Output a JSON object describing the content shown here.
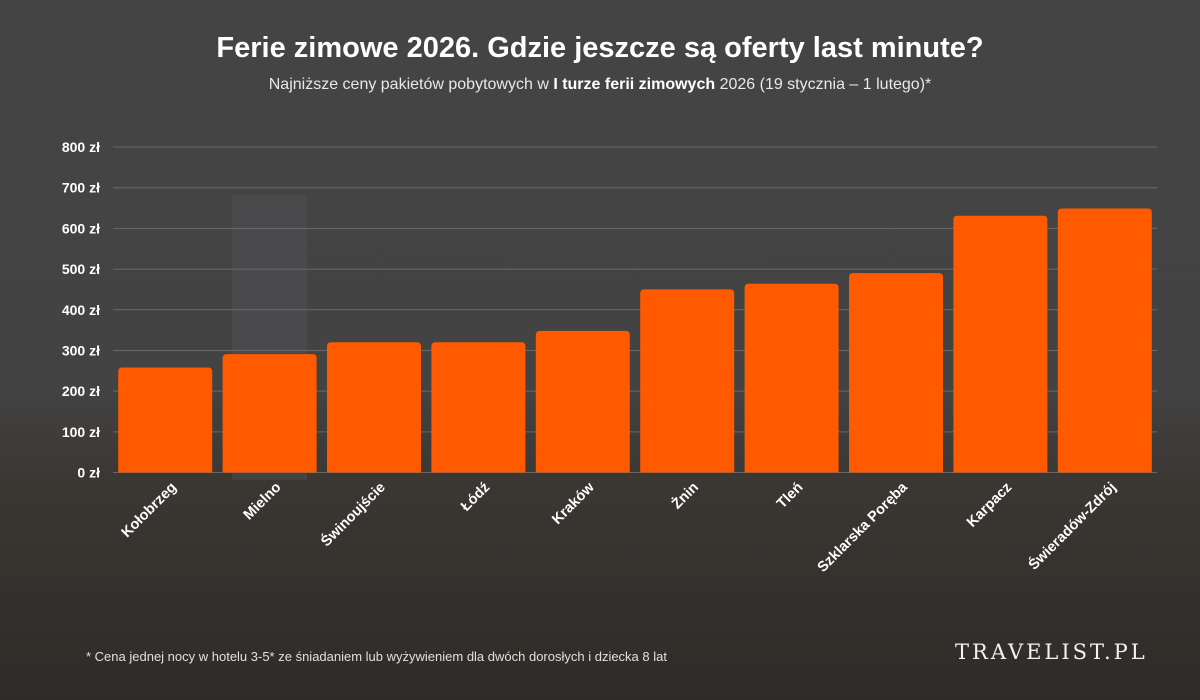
{
  "title": "Ferie zimowe 2026. Gdzie jeszcze są oferty last minute?",
  "subtitle": {
    "pre": "Najniższe ceny pakietów pobytowych w ",
    "bold": "I turze ferii zimowych",
    "post": " 2026 (19 stycznia – 1 lutego)*"
  },
  "footnote": "* Cena jednej nocy w hotelu 3-5* ze śniadaniem lub wyżywieniem dla dwóch dorosłych i dziecka 8 lat",
  "logo": "TRAVELIST.PL",
  "colors": {
    "bar": "#ff5a00",
    "background": "#444444",
    "grid": "#7a7a7a"
  },
  "chart_data": {
    "type": "bar",
    "title": "Ferie zimowe 2026. Gdzie jeszcze są oferty last minute?",
    "categories": [
      "Kołobrzeg",
      "Mielno",
      "Świnoujście",
      "Łódź",
      "Kraków",
      "Żnin",
      "Tleń",
      "Szklarska Poręba",
      "Karpacz",
      "Świeradów-Zdrój"
    ],
    "values": [
      258,
      291,
      320,
      320,
      348,
      450,
      464,
      490,
      631,
      649
    ],
    "ylim": [
      0,
      800
    ],
    "yticks": [
      "0 zł",
      "100 zł",
      "200 zł",
      "300 zł",
      "400 zł",
      "500 zł",
      "600 zł",
      "700 zł",
      "800 zł"
    ],
    "ytick_values": [
      0,
      100,
      200,
      300,
      400,
      500,
      600,
      700,
      800
    ],
    "grid": true,
    "xlabel": "",
    "ylabel": ""
  }
}
